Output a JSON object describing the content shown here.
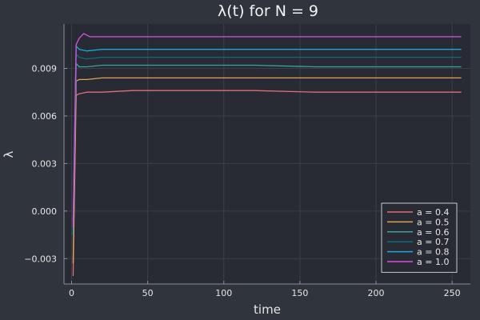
{
  "chart_data": {
    "type": "line",
    "title": "λ(t) for N = 9",
    "xlabel": "time",
    "ylabel": "λ",
    "xlim": [
      -5,
      262
    ],
    "ylim": [
      -0.0046,
      0.0118
    ],
    "x_ticks": [
      0,
      50,
      100,
      150,
      200,
      250
    ],
    "x_tick_labels": [
      "0",
      "50",
      "100",
      "150",
      "200",
      "250"
    ],
    "y_ticks": [
      -0.003,
      0.0,
      0.003,
      0.006,
      0.009
    ],
    "y_tick_labels": [
      "−0.003",
      "0.000",
      "0.003",
      "0.006",
      "0.009"
    ],
    "grid": true,
    "legend_position": "bottom-right",
    "background": "#282b33",
    "series": [
      {
        "name": "a = 0.4",
        "color": "#e26d78",
        "x": [
          1,
          3,
          5,
          10,
          20,
          40,
          80,
          120,
          160,
          200,
          256
        ],
        "y": [
          -0.0041,
          0.0073,
          0.0074,
          0.0075,
          0.0075,
          0.0076,
          0.0076,
          0.0076,
          0.0075,
          0.0075,
          0.0075
        ]
      },
      {
        "name": "a = 0.5",
        "color": "#e0a35a",
        "x": [
          1,
          3,
          5,
          10,
          20,
          40,
          80,
          120,
          160,
          200,
          256
        ],
        "y": [
          -0.0033,
          0.0082,
          0.0083,
          0.0083,
          0.0084,
          0.0084,
          0.0084,
          0.0084,
          0.0084,
          0.0084,
          0.0084
        ]
      },
      {
        "name": "a = 0.6",
        "color": "#3aa39a",
        "x": [
          1,
          3,
          5,
          10,
          20,
          40,
          80,
          120,
          160,
          200,
          256
        ],
        "y": [
          -0.0015,
          0.0093,
          0.0091,
          0.0091,
          0.0092,
          0.0092,
          0.0092,
          0.0092,
          0.0091,
          0.0091,
          0.0091
        ]
      },
      {
        "name": "a = 0.7",
        "color": "#0e6b82",
        "x": [
          1,
          3,
          5,
          10,
          20,
          40,
          80,
          120,
          160,
          200,
          256
        ],
        "y": [
          -0.0008,
          0.0099,
          0.0097,
          0.0096,
          0.0097,
          0.0097,
          0.0097,
          0.0097,
          0.0097,
          0.0097,
          0.0097
        ]
      },
      {
        "name": "a = 0.8",
        "color": "#17a9de",
        "x": [
          1,
          3,
          5,
          10,
          20,
          40,
          80,
          120,
          160,
          200,
          256
        ],
        "y": [
          -0.0006,
          0.0104,
          0.0102,
          0.0101,
          0.0102,
          0.0102,
          0.0102,
          0.0102,
          0.0102,
          0.0102,
          0.0102
        ]
      },
      {
        "name": "a = 1.0",
        "color": "#d94fe0",
        "x": [
          1,
          3,
          5,
          8,
          12,
          20,
          40,
          80,
          120,
          160,
          200,
          256
        ],
        "y": [
          -0.001,
          0.0105,
          0.0109,
          0.0112,
          0.011,
          0.011,
          0.011,
          0.011,
          0.011,
          0.011,
          0.011,
          0.011
        ]
      }
    ]
  }
}
